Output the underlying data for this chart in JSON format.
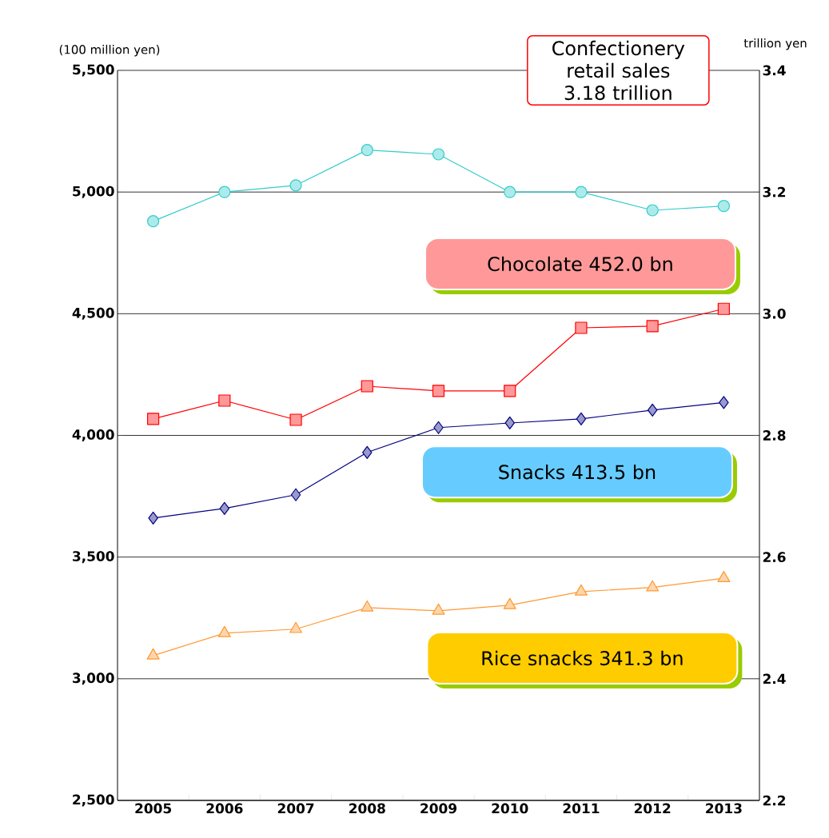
{
  "chart_data": {
    "type": "line",
    "categories": [
      "2005",
      "2006",
      "2007",
      "2008",
      "2009",
      "2010",
      "2011",
      "2012",
      "2013"
    ],
    "ylabel": "(100 million yen)",
    "y2label": "trillion yen",
    "ylim": [
      2500,
      5500
    ],
    "yticks": [
      {
        "value": 2500,
        "label": "2,500"
      },
      {
        "value": 3000,
        "label": "3,000"
      },
      {
        "value": 3500,
        "label": "3,500"
      },
      {
        "value": 4000,
        "label": "4,000"
      },
      {
        "value": 4500,
        "label": "4,500"
      },
      {
        "value": 5000,
        "label": "5,000"
      },
      {
        "value": 5500,
        "label": "5,500"
      }
    ],
    "y2lim": [
      2.2,
      3.4
    ],
    "y2ticks": [
      {
        "value": 2.2,
        "label": "2.2"
      },
      {
        "value": 2.4,
        "label": "2.4"
      },
      {
        "value": 2.6,
        "label": "2.6"
      },
      {
        "value": 2.8,
        "label": "2.8"
      },
      {
        "value": 3.0,
        "label": "3.0"
      },
      {
        "value": 3.2,
        "label": "3.2"
      },
      {
        "value": 3.4,
        "label": "3.4"
      }
    ],
    "title": "Confectionery retail sales 3.18 trillion",
    "grid": "y",
    "legend": "right",
    "series": [
      {
        "axis": "y2",
        "color": "#33cccc",
        "marker": "circle",
        "values": [
          3.152,
          3.2,
          3.211,
          3.269,
          3.262,
          3.2,
          3.2,
          3.17,
          3.177
        ]
      },
      {
        "name": "Chocolate 452.0 bn",
        "color": "#ff0000",
        "marker": "square",
        "values": [
          4068,
          4143,
          4064,
          4202,
          4183,
          4183,
          4442,
          4449,
          4520
        ]
      },
      {
        "name": "Snacks 413.5 bn",
        "color": "#000080",
        "marker": "diamond",
        "values": [
          3660,
          3700,
          3756,
          3930,
          4032,
          4051,
          4068,
          4104,
          4135
        ]
      },
      {
        "name": "Rice snacks 341.3 bn",
        "color": "#ff9933",
        "marker": "triangle",
        "values": [
          3095,
          3187,
          3204,
          3292,
          3279,
          3302,
          3358,
          3375,
          3413
        ]
      }
    ]
  }
}
